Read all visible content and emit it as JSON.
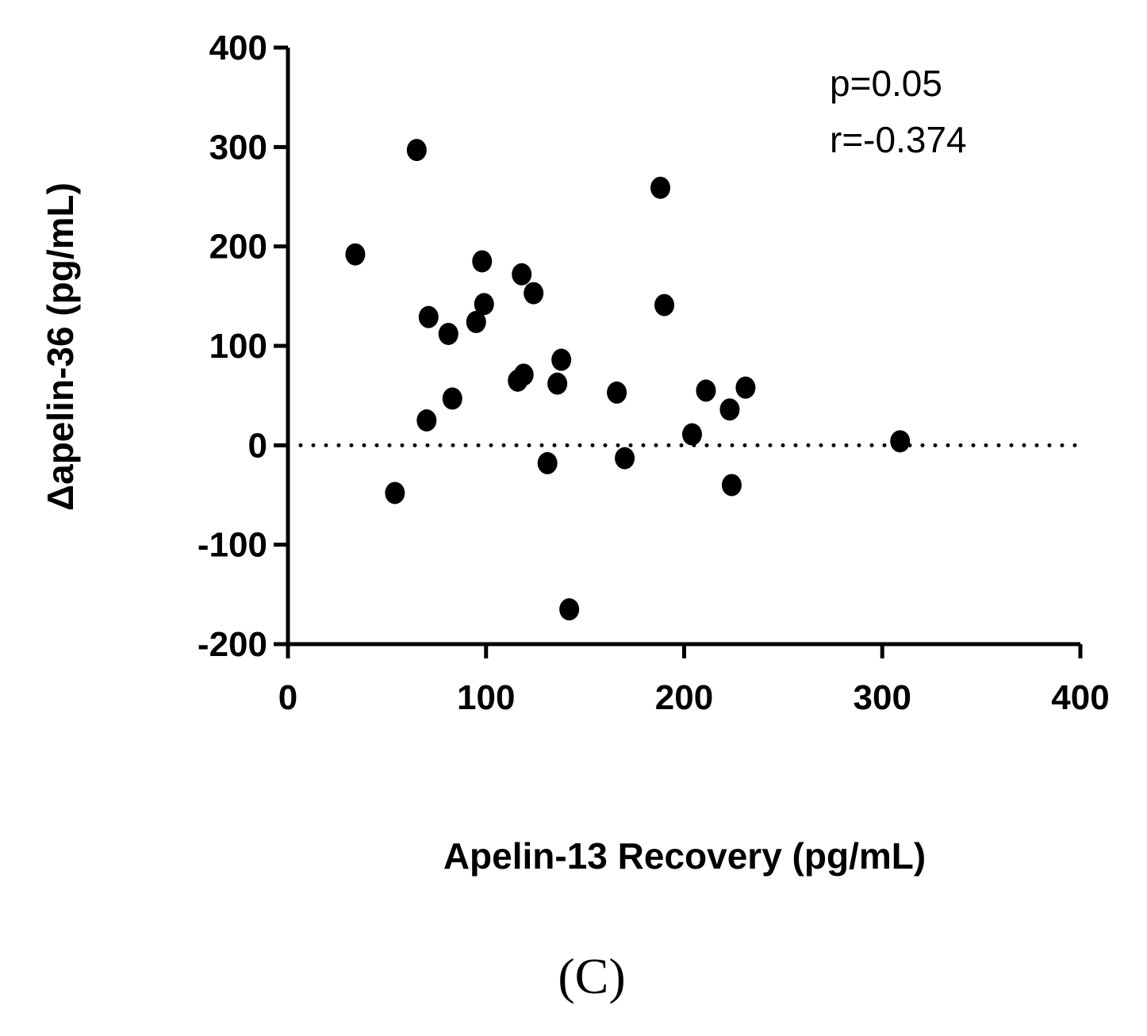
{
  "chart_data": {
    "type": "scatter",
    "title": "",
    "xlabel": "Apelin-13 Recovery (pg/mL)",
    "ylabel": "Δapelin-36 (pg/mL)",
    "xlim": [
      0,
      400
    ],
    "ylim": [
      -200,
      400
    ],
    "xticks": [
      "0",
      "100",
      "200",
      "300",
      "400"
    ],
    "yticks": [
      "400",
      "300",
      "200",
      "100",
      "0",
      "-100",
      "-200"
    ],
    "reference_line": {
      "y": 0,
      "style": "dotted"
    },
    "annotations": [
      "p=0.05",
      "r=-0.374"
    ],
    "grid": false,
    "series": [
      {
        "points": [
          [
            34,
            192
          ],
          [
            54,
            -48
          ],
          [
            65,
            297
          ],
          [
            71,
            129
          ],
          [
            70,
            25
          ],
          [
            81,
            112
          ],
          [
            83,
            47
          ],
          [
            95,
            124
          ],
          [
            98,
            185
          ],
          [
            99,
            142
          ],
          [
            116,
            65
          ],
          [
            118,
            172
          ],
          [
            119,
            71
          ],
          [
            124,
            153
          ],
          [
            131,
            -18
          ],
          [
            136,
            62
          ],
          [
            138,
            86
          ],
          [
            142,
            -165
          ],
          [
            166,
            53
          ],
          [
            170,
            -13
          ],
          [
            188,
            259
          ],
          [
            190,
            141
          ],
          [
            204,
            11
          ],
          [
            211,
            55
          ],
          [
            223,
            36
          ],
          [
            224,
            -40
          ],
          [
            231,
            58
          ],
          [
            309,
            4
          ]
        ]
      }
    ]
  },
  "panel_label": "(C)"
}
